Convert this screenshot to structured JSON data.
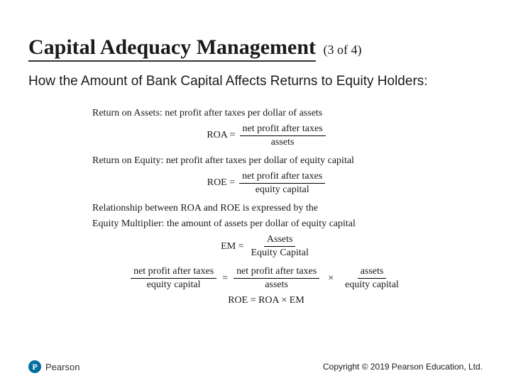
{
  "title": "Capital Adequacy Management",
  "page_count": "(3 of 4)",
  "subtitle": "How the Amount of Bank Capital Affects Returns to Equity Holders:",
  "formulas": {
    "roa_def": "Return on Assets: net profit after taxes per dollar of assets",
    "roa_label": "ROA =",
    "roa_num": "net profit after taxes",
    "roa_den": "assets",
    "roe_def": "Return on Equity: net profit after taxes per dollar of equity capital",
    "roe_label": "ROE =",
    "roe_num": "net profit after taxes",
    "roe_den": "equity capital",
    "rel_line1": "Relationship between ROA and ROE is expressed by the",
    "rel_line2": "Equity Multiplier: the amount of assets per dollar of equity capital",
    "em_label": "EM =",
    "em_num": "Assets",
    "em_den": "Equity Capital",
    "long_f1_num": "net profit after taxes",
    "long_f1_den": "equity capital",
    "long_eq": "=",
    "long_f2_num": "net profit after taxes",
    "long_f2_den": "assets",
    "long_times": "×",
    "long_f3_num": "assets",
    "long_f3_den": "equity capital",
    "final_eq": "ROE = ROA  ×  EM"
  },
  "logo": {
    "badge": "P",
    "text": "Pearson"
  },
  "copyright": "Copyright © 2019 Pearson Education, Ltd."
}
